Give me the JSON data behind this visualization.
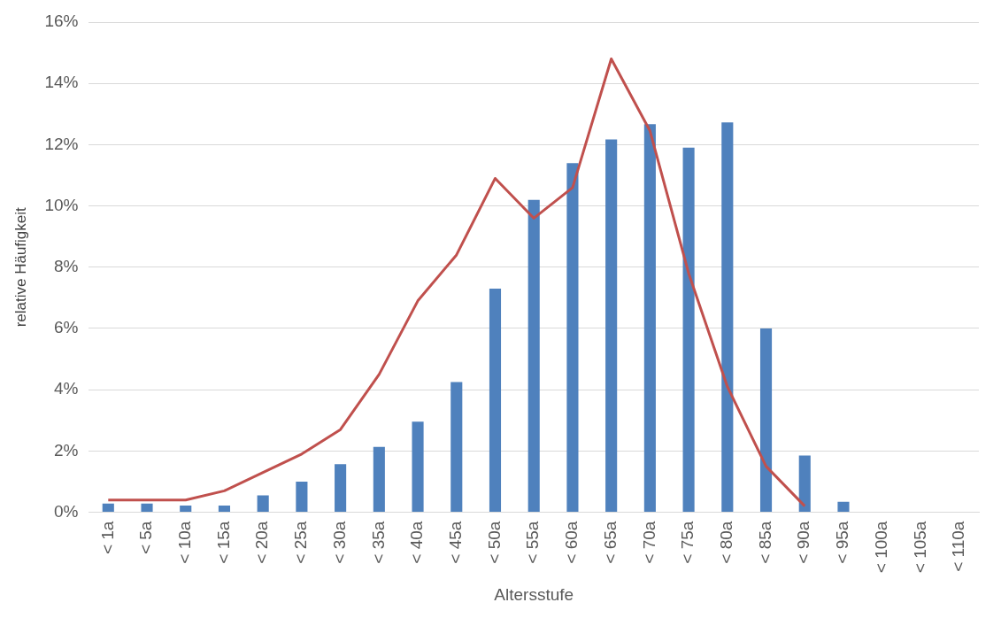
{
  "chart_data": {
    "type": "bar",
    "xlabel": "Altersstufe",
    "ylabel": "relative Häufigkeit",
    "categories": [
      "< 1a",
      "< 5a",
      "< 10a",
      "< 15a",
      "< 20a",
      "< 25a",
      "< 30a",
      "< 35a",
      "< 40a",
      "< 45a",
      "< 50a",
      "< 55a",
      "< 60a",
      "< 65a",
      "< 70a",
      "< 75a",
      "< 80a",
      "< 85a",
      "< 90a",
      "< 95a",
      "< 100a",
      "< 105a",
      "< 110a"
    ],
    "series": [
      {
        "color": "#4f81bd",
        "values": [
          0.28,
          0.28,
          0.22,
          0.22,
          0.55,
          1.0,
          1.57,
          2.13,
          2.96,
          4.25,
          7.3,
          10.2,
          11.4,
          12.17,
          12.67,
          11.9,
          12.73,
          6.0,
          1.85,
          0.34,
          0,
          0,
          0
        ]
      },
      {
        "type": "line",
        "color": "#c0504d",
        "marker": "none",
        "values": [
          0.4,
          0.4,
          0.4,
          0.7,
          1.3,
          1.9,
          2.7,
          4.5,
          6.9,
          8.4,
          10.9,
          9.6,
          10.6,
          14.8,
          12.45,
          7.8,
          4.1,
          1.5,
          0.2,
          null,
          null,
          null,
          null
        ]
      }
    ],
    "ylim": [
      0,
      16
    ],
    "yticks": [
      {
        "value": 0,
        "label": "0%"
      },
      {
        "value": 2,
        "label": "2%"
      },
      {
        "value": 4,
        "label": "4%"
      },
      {
        "value": 6,
        "label": "6%"
      },
      {
        "value": 8,
        "label": "8%"
      },
      {
        "value": 10,
        "label": "10%"
      },
      {
        "value": 12,
        "label": "12%"
      },
      {
        "value": 14,
        "label": "14%"
      },
      {
        "value": 16,
        "label": "16%"
      }
    ],
    "grid": "y",
    "legend": false
  }
}
